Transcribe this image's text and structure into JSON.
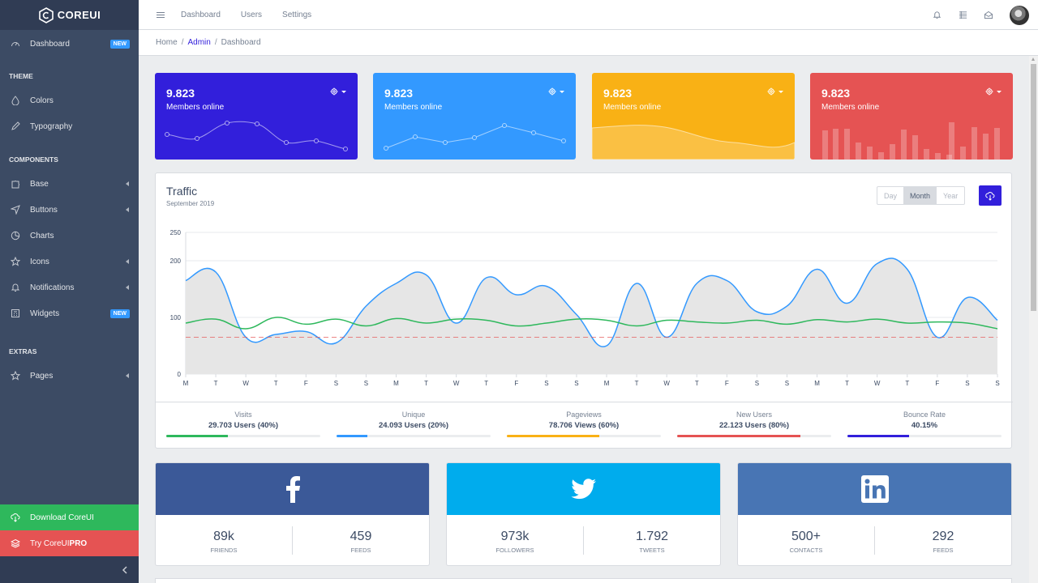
{
  "brand": {
    "name": "COREUI"
  },
  "sidebar": {
    "items": [
      {
        "label": "Dashboard",
        "icon": "speedometer-icon",
        "badge": "NEW"
      },
      {
        "section": "THEME"
      },
      {
        "label": "Colors",
        "icon": "drop-icon"
      },
      {
        "label": "Typography",
        "icon": "pencil-icon"
      },
      {
        "section": "COMPONENTS"
      },
      {
        "label": "Base",
        "icon": "puzzle-icon"
      },
      {
        "label": "Buttons",
        "icon": "cursor-icon"
      },
      {
        "label": "Charts",
        "icon": "chart-pie-icon"
      },
      {
        "label": "Icons",
        "icon": "star-icon"
      },
      {
        "label": "Notifications",
        "icon": "bell-icon"
      },
      {
        "label": "Widgets",
        "icon": "calculator-icon",
        "badge": "NEW"
      },
      {
        "section": "EXTRAS"
      },
      {
        "label": "Pages",
        "icon": "star-icon"
      }
    ],
    "download": "Download CoreUI",
    "pro_prefix": "Try CoreUI",
    "pro_suffix": "PRO"
  },
  "header": {
    "links": [
      "Dashboard",
      "Users",
      "Settings"
    ],
    "icons": [
      "bell-icon",
      "list-icon",
      "envelope-icon"
    ]
  },
  "breadcrumb": [
    "Home",
    "Admin",
    "Dashboard"
  ],
  "stats": [
    {
      "value": "9.823",
      "caption": "Members online",
      "color": "#321fdb"
    },
    {
      "value": "9.823",
      "caption": "Members online",
      "color": "#39f"
    },
    {
      "value": "9.823",
      "caption": "Members online",
      "color": "#f9b115"
    },
    {
      "value": "9.823",
      "caption": "Members online",
      "color": "#e55353"
    }
  ],
  "traffic": {
    "title": "Traffic",
    "subtitle": "September 2019",
    "periods": [
      "Day",
      "Month",
      "Year"
    ],
    "active_period": "Month",
    "footer": [
      {
        "title": "Visits",
        "value": "29.703 Users (40%)",
        "percent": 40,
        "color": "#2eb85c"
      },
      {
        "title": "Unique",
        "value": "24.093 Users (20%)",
        "percent": 20,
        "color": "#39f"
      },
      {
        "title": "Pageviews",
        "value": "78.706 Views (60%)",
        "percent": 60,
        "color": "#f9b115"
      },
      {
        "title": "New Users",
        "value": "22.123 Users (80%)",
        "percent": 80,
        "color": "#e55353"
      },
      {
        "title": "Bounce Rate",
        "value": "40.15%",
        "percent": 40,
        "color": "#321fdb"
      }
    ]
  },
  "chart_data": {
    "type": "line",
    "x": [
      "M",
      "T",
      "W",
      "T",
      "F",
      "S",
      "S",
      "M",
      "T",
      "W",
      "T",
      "F",
      "S",
      "S",
      "M",
      "T",
      "W",
      "T",
      "F",
      "S",
      "S",
      "M",
      "T",
      "W",
      "T",
      "F",
      "S",
      "S"
    ],
    "yticks": [
      "0",
      "100",
      "200",
      "250"
    ],
    "ylim": [
      0,
      250
    ],
    "series": [
      {
        "values": [
          165,
          180,
          65,
          70,
          75,
          55,
          120,
          160,
          175,
          90,
          170,
          140,
          155,
          105,
          50,
          160,
          65,
          160,
          165,
          110,
          120,
          185,
          125,
          195,
          185,
          65,
          135,
          95
        ],
        "color": "#39f",
        "fill": "#e6e6e6"
      },
      {
        "values": [
          90,
          97,
          80,
          100,
          88,
          97,
          85,
          98,
          90,
          97,
          95,
          85,
          90,
          97,
          95,
          85,
          95,
          92,
          90,
          95,
          88,
          96,
          92,
          97,
          90,
          92,
          90,
          80
        ],
        "color": "#2eb85c"
      },
      {
        "values": [
          65,
          65,
          65,
          65,
          65,
          65,
          65,
          65,
          65,
          65,
          65,
          65,
          65,
          65,
          65,
          65,
          65,
          65,
          65,
          65,
          65,
          65,
          65,
          65,
          65,
          65,
          65,
          65
        ],
        "color": "#e55353",
        "dashed": true
      }
    ]
  },
  "social": [
    {
      "network": "facebook",
      "icon": "facebook-icon",
      "color": "#3b5998",
      "a_value": "89k",
      "a_label": "FRIENDS",
      "b_value": "459",
      "b_label": "FEEDS"
    },
    {
      "network": "twitter",
      "icon": "twitter-icon",
      "color": "#00aced",
      "a_value": "973k",
      "a_label": "FOLLOWERS",
      "b_value": "1.792",
      "b_label": "TWEETS"
    },
    {
      "network": "linkedin",
      "icon": "linkedin-icon",
      "color": "#4875b4",
      "a_value": "500+",
      "a_label": "CONTACTS",
      "b_value": "292",
      "b_label": "FEEDS"
    }
  ]
}
